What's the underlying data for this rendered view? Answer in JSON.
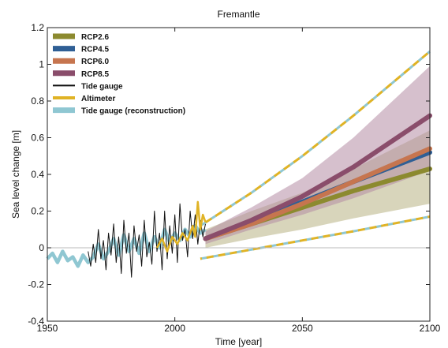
{
  "chart_data": {
    "type": "line",
    "title": "Fremantle",
    "xlabel": "Time [year]",
    "ylabel": "Sea level change [m]",
    "xlim": [
      1950,
      2100
    ],
    "ylim": [
      -0.4,
      1.2
    ],
    "xticks": [
      1950,
      2000,
      2050,
      2100
    ],
    "yticks": [
      -0.4,
      -0.2,
      0,
      0.2,
      0.4,
      0.6,
      0.8,
      1,
      1.2
    ],
    "ytick_labels": [
      "-0.4",
      "-0.2",
      "0",
      "0.2",
      "0.4",
      "0.6",
      "0.8",
      "1",
      "1.2"
    ],
    "grid": false,
    "legend_position": "top-left",
    "legend": [
      {
        "name": "RCP2.6",
        "color": "#8c8a2f"
      },
      {
        "name": "RCP4.5",
        "color": "#2f5f95"
      },
      {
        "name": "RCP6.0",
        "color": "#c6754f"
      },
      {
        "name": "RCP8.5",
        "color": "#8a4d6b"
      },
      {
        "name": "Tide gauge",
        "color": "#111111"
      },
      {
        "name": "Altimeter",
        "color": "#e0b325"
      },
      {
        "name": "Tide gauge (reconstruction)",
        "color": "#8fc7d2"
      }
    ],
    "projections": [
      {
        "name": "RCP2.6",
        "color": "#8c8a2f",
        "x": [
          2012,
          2030,
          2050,
          2070,
          2100
        ],
        "y": [
          0.05,
          0.13,
          0.22,
          0.31,
          0.43
        ]
      },
      {
        "name": "RCP4.5",
        "color": "#2f5f95",
        "x": [
          2012,
          2030,
          2050,
          2070,
          2100
        ],
        "y": [
          0.05,
          0.14,
          0.25,
          0.36,
          0.52
        ]
      },
      {
        "name": "RCP6.0",
        "color": "#c6754f",
        "x": [
          2012,
          2030,
          2050,
          2070,
          2100
        ],
        "y": [
          0.05,
          0.13,
          0.24,
          0.36,
          0.54
        ]
      },
      {
        "name": "RCP8.5",
        "color": "#8a4d6b",
        "x": [
          2012,
          2030,
          2050,
          2070,
          2100
        ],
        "y": [
          0.05,
          0.15,
          0.28,
          0.44,
          0.72
        ]
      }
    ],
    "uncertainty_bands": [
      {
        "name": "RCP2.6",
        "color": "#b8b284",
        "x": [
          2012,
          2030,
          2050,
          2070,
          2100
        ],
        "low": [
          0.0,
          0.05,
          0.1,
          0.16,
          0.24
        ],
        "high": [
          0.1,
          0.2,
          0.3,
          0.43,
          0.64
        ]
      },
      {
        "name": "RCP8.5",
        "color": "#b48ca4",
        "x": [
          2012,
          2030,
          2050,
          2070,
          2100
        ],
        "low": [
          0.02,
          0.1,
          0.18,
          0.27,
          0.42
        ],
        "high": [
          0.09,
          0.22,
          0.38,
          0.6,
          0.99
        ]
      }
    ],
    "envelope": {
      "color": "#e0b325",
      "dash_color": "#8fc7d2",
      "x": [
        2010,
        2030,
        2050,
        2070,
        2100
      ],
      "low": [
        -0.06,
        -0.01,
        0.04,
        0.09,
        0.17
      ],
      "high": [
        0.12,
        0.3,
        0.5,
        0.72,
        1.07
      ]
    },
    "tide_gauge": {
      "color": "#111111",
      "x": [
        1966,
        1967,
        1968,
        1969,
        1970,
        1971,
        1972,
        1973,
        1974,
        1975,
        1976,
        1977,
        1978,
        1979,
        1980,
        1981,
        1982,
        1983,
        1984,
        1985,
        1986,
        1987,
        1988,
        1989,
        1990,
        1991,
        1992,
        1993,
        1994,
        1995,
        1996,
        1997,
        1998,
        1999,
        2000,
        2001,
        2002,
        2003,
        2004,
        2005,
        2006,
        2007,
        2008,
        2009,
        2010,
        2011,
        2012
      ],
      "y": [
        -0.02,
        -0.1,
        0.02,
        -0.08,
        0.1,
        -0.06,
        0.04,
        -0.12,
        0.08,
        -0.04,
        0.13,
        -0.08,
        0.06,
        -0.14,
        0.15,
        -0.03,
        0.08,
        -0.16,
        0.12,
        -0.02,
        0.07,
        -0.1,
        0.15,
        -0.05,
        0.03,
        -0.09,
        0.2,
        -0.02,
        0.08,
        -0.12,
        0.2,
        -0.06,
        0.12,
        -0.03,
        0.18,
        -0.08,
        0.24,
        0.04,
        0.1,
        -0.05,
        0.2,
        0.05,
        0.18,
        0.02,
        0.15,
        0.06,
        0.13
      ]
    },
    "altimeter": {
      "color": "#e0b325",
      "x": [
        1993,
        1995,
        1997,
        1999,
        2001,
        2003,
        2005,
        2007,
        2008,
        2009,
        2010,
        2011,
        2012
      ],
      "y": [
        0.0,
        0.05,
        -0.02,
        0.06,
        0.02,
        0.08,
        0.04,
        0.12,
        0.06,
        0.25,
        0.1,
        0.18,
        0.14
      ]
    },
    "reconstruction": {
      "color": "#8fc7d2",
      "x": [
        1950,
        1952,
        1954,
        1956,
        1958,
        1960,
        1962,
        1964,
        1966,
        1968,
        1970,
        1972,
        1974,
        1976,
        1978,
        1980,
        1982,
        1984,
        1986,
        1988,
        1990,
        1992,
        1994,
        1996,
        1998,
        2000,
        2002,
        2004,
        2006,
        2008,
        2010,
        2012
      ],
      "y": [
        -0.06,
        -0.03,
        -0.08,
        -0.02,
        -0.07,
        -0.05,
        -0.1,
        -0.04,
        -0.08,
        -0.05,
        0.02,
        -0.06,
        -0.02,
        0.05,
        -0.04,
        0.07,
        -0.02,
        0.05,
        -0.03,
        0.08,
        -0.02,
        0.06,
        0.0,
        0.1,
        0.03,
        0.08,
        0.04,
        0.1,
        0.06,
        0.12,
        0.08,
        0.1
      ]
    },
    "zero_line": {
      "y": 0,
      "color": "#bbbbbb"
    }
  }
}
